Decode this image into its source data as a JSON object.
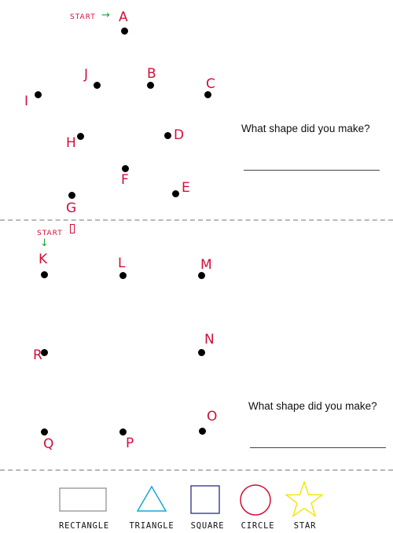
{
  "puzzle1": {
    "start_label": "START",
    "points": [
      {
        "label": "A"
      },
      {
        "label": "B"
      },
      {
        "label": "C"
      },
      {
        "label": "D"
      },
      {
        "label": "E"
      },
      {
        "label": "F"
      },
      {
        "label": "G"
      },
      {
        "label": "H"
      },
      {
        "label": "I"
      },
      {
        "label": "J"
      }
    ],
    "question": "What shape did you make?"
  },
  "puzzle2": {
    "start_label": "START",
    "points": [
      {
        "label": "K"
      },
      {
        "label": "L"
      },
      {
        "label": "M"
      },
      {
        "label": "N"
      },
      {
        "label": "O"
      },
      {
        "label": "P"
      },
      {
        "label": "Q"
      },
      {
        "label": "R"
      }
    ],
    "question": "What shape did you make?"
  },
  "legend": {
    "items": [
      {
        "label": "RECTANGLE",
        "icon": "rectangle-icon",
        "color": "#8a8a8a"
      },
      {
        "label": "TRIANGLE",
        "icon": "triangle-icon",
        "color": "#1aa6d6"
      },
      {
        "label": "SQUARE",
        "icon": "square-icon",
        "color": "#2b2b8c"
      },
      {
        "label": "CIRCLE",
        "icon": "circle-icon",
        "color": "#d0103a"
      },
      {
        "label": "STAR",
        "icon": "star-icon",
        "color": "#f2e600"
      }
    ]
  },
  "colors": {
    "letters": "#d0103a",
    "arrow": "#1fa23a",
    "divider": "#b8b8b8"
  }
}
